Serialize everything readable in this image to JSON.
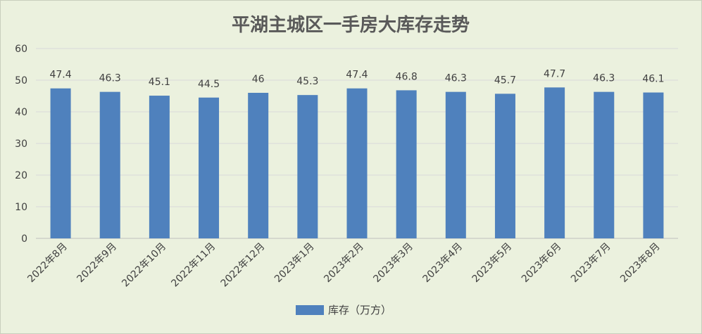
{
  "chart_data": {
    "type": "bar",
    "title": "平湖主城区一手房大库存走势",
    "categories": [
      "2022年8月",
      "2022年9月",
      "2022年10月",
      "2022年11月",
      "2022年12月",
      "2023年1月",
      "2023年2月",
      "2023年3月",
      "2023年4月",
      "2023年5月",
      "2023年6月",
      "2023年7月",
      "2023年8月"
    ],
    "series": [
      {
        "name": "库存（万方）",
        "values": [
          47.4,
          46.3,
          45.1,
          44.5,
          46,
          45.3,
          47.4,
          46.8,
          46.3,
          45.7,
          47.7,
          46.3,
          46.1
        ],
        "labels": [
          "47.4",
          "46.3",
          "45.1",
          "44.5",
          "46",
          "45.3",
          "47.4",
          "46.8",
          "46.3",
          "45.7",
          "47.7",
          "46.3",
          "46.1"
        ]
      }
    ],
    "yticks": [
      "0",
      "10",
      "20",
      "30",
      "40",
      "50",
      "60"
    ],
    "ylim": [
      0,
      60
    ],
    "grid": true,
    "legend_position": "bottom",
    "bar_color": "#4f81bd",
    "background_color": "#ebf1de"
  }
}
